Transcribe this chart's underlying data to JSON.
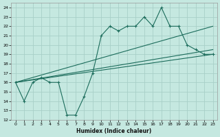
{
  "xlabel": "Humidex (Indice chaleur)",
  "background_color": "#c5e8e0",
  "line_color": "#1a6b5a",
  "grid_color": "#a8cfc8",
  "xlim": [
    -0.5,
    23.5
  ],
  "ylim": [
    12,
    24.5
  ],
  "xticks": [
    0,
    1,
    2,
    3,
    4,
    5,
    6,
    7,
    8,
    9,
    10,
    11,
    12,
    13,
    14,
    15,
    16,
    17,
    18,
    19,
    20,
    21,
    22,
    23
  ],
  "yticks": [
    12,
    13,
    14,
    15,
    16,
    17,
    18,
    19,
    20,
    21,
    22,
    23,
    24
  ],
  "wavy_x": [
    0,
    1,
    2,
    3,
    4,
    5,
    6,
    7,
    8,
    9,
    10,
    11,
    12,
    13,
    14,
    15,
    16,
    17,
    18,
    19,
    20,
    21,
    22,
    23
  ],
  "wavy_y": [
    16,
    14,
    16,
    16.5,
    16,
    16,
    12.5,
    12.5,
    14.5,
    17,
    21,
    22,
    21.5,
    22,
    22,
    23,
    22,
    24,
    22,
    22,
    20,
    19.5,
    19,
    19
  ],
  "trend_lines": [
    {
      "x0": 0,
      "y0": 16,
      "x1": 23,
      "y1": 22
    },
    {
      "x0": 0,
      "y0": 16,
      "x1": 23,
      "y1": 19.5
    },
    {
      "x0": 0,
      "y0": 16,
      "x1": 23,
      "y1": 19
    }
  ]
}
